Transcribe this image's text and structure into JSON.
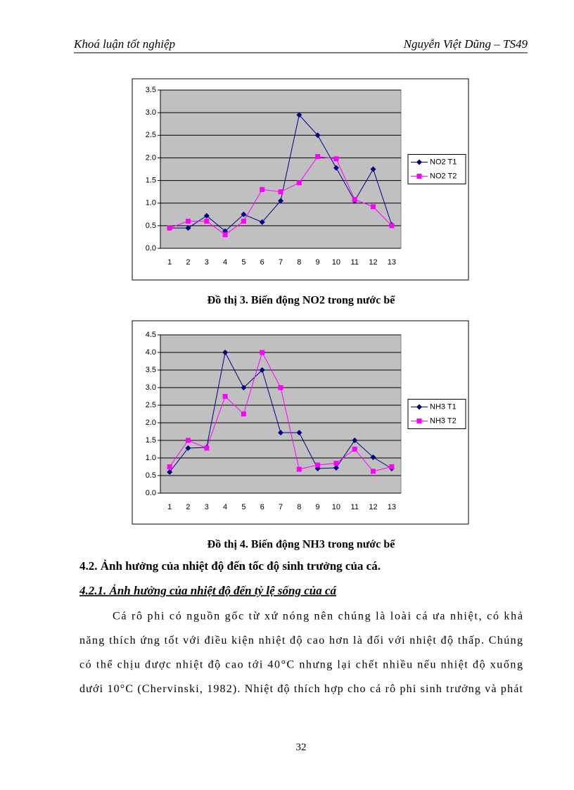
{
  "header": {
    "left": "Khoá luận tốt nghiệp",
    "right": "Nguyễn Việt Dũng – TS49"
  },
  "chart_data": [
    {
      "type": "line",
      "title": "Đồ thị 3. Biến động NO2 trong nước bể",
      "categories": [
        "1",
        "2",
        "3",
        "4",
        "5",
        "6",
        "7",
        "8",
        "9",
        "10",
        "11",
        "12",
        "13"
      ],
      "series": [
        {
          "name": "NO2 T1",
          "color": "#000080",
          "marker": "diamond",
          "values": [
            0.45,
            0.45,
            0.72,
            0.38,
            0.75,
            0.58,
            1.05,
            2.95,
            2.5,
            1.78,
            1.05,
            1.75,
            0.52
          ]
        },
        {
          "name": "NO2 T2",
          "color": "#ff00ff",
          "marker": "square",
          "values": [
            0.45,
            0.6,
            0.6,
            0.3,
            0.6,
            1.3,
            1.25,
            1.45,
            2.03,
            1.98,
            1.08,
            0.92,
            0.5
          ]
        }
      ],
      "ylim": [
        0,
        3.5
      ],
      "yticks": [
        {
          "value": 0,
          "label": "0.0"
        },
        0.5,
        {
          "value": 1,
          "label": "1.0"
        },
        1.5,
        {
          "value": 2,
          "label": "2.0"
        },
        2.5,
        {
          "value": 3,
          "label": "3.0"
        },
        3.5
      ],
      "grid": true,
      "legend": "right"
    },
    {
      "type": "line",
      "title": "Đồ thị 4. Biến động NH3 trong nước bể",
      "categories": [
        "1",
        "2",
        "3",
        "4",
        "5",
        "6",
        "7",
        "8",
        "9",
        "10",
        "11",
        "12",
        "13"
      ],
      "series": [
        {
          "name": "NH3 T1",
          "color": "#000080",
          "marker": "diamond",
          "values": [
            0.6,
            1.28,
            1.3,
            4.0,
            3.0,
            3.5,
            1.72,
            1.72,
            0.7,
            0.72,
            1.5,
            1.02,
            0.7
          ]
        },
        {
          "name": "NH3 T2",
          "color": "#ff00ff",
          "marker": "square",
          "values": [
            0.75,
            1.5,
            1.28,
            2.75,
            2.25,
            4.0,
            3.0,
            0.68,
            0.8,
            0.85,
            1.25,
            0.62,
            0.75
          ]
        }
      ],
      "ylim": [
        0,
        4.5
      ],
      "yticks": [
        {
          "value": 0,
          "label": "0.0"
        },
        0.5,
        {
          "value": 1,
          "label": "1.0"
        },
        1.5,
        {
          "value": 2,
          "label": "2.0"
        },
        2.5,
        {
          "value": 3,
          "label": "3.0"
        },
        3.5,
        {
          "value": 4,
          "label": "4.0"
        },
        4.5
      ],
      "grid": true,
      "legend": "right"
    }
  ],
  "section": {
    "heading": "4.2. Ảnh hưởng của nhiệt độ đến tốc độ sinh trưởng của cá.",
    "subheading": "4.2.1.  Ảnh hưởng của nhiệt độ đến tỷ lệ sống của cá",
    "paragraph_lines": [
      "Cá rô phi có nguồn gốc từ xứ nóng nên chúng là loài cá ưa nhiệt, có khả",
      "năng thích ứng tốt với điều kiện nhiệt độ cao hơn là đối với nhiệt độ thấp. Chúng",
      "có thể chịu được nhiệt độ cao tới 40°C nhưng lại chết nhiều nếu nhiệt độ xuống",
      "dưới 10°C (Chervinski, 1982). Nhiệt độ thích hợp cho cá rô phi sinh trưởng và phát"
    ]
  },
  "page_number": "32"
}
